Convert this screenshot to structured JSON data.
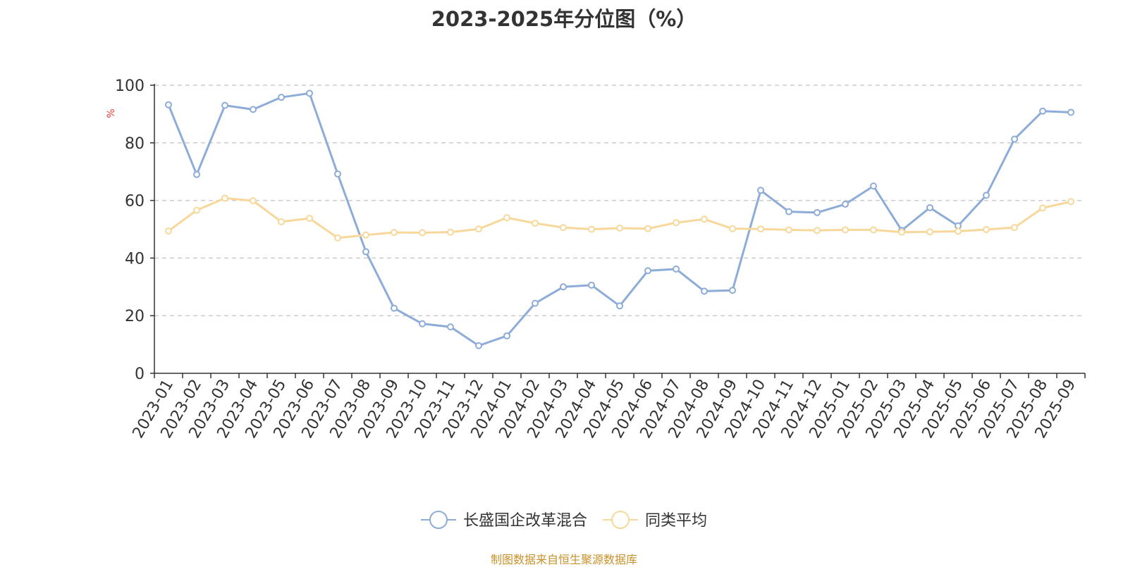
{
  "chart_data": {
    "type": "line",
    "title": "2023-2025年分位图（%）",
    "ylabel": "%",
    "xlabel": "",
    "ylim": [
      0,
      100
    ],
    "yticks": [
      0,
      20,
      40,
      60,
      80,
      100
    ],
    "grid": "horizontal dashed",
    "legend_position": "bottom-center",
    "categories": [
      "2023-01",
      "2023-02",
      "2023-03",
      "2023-04",
      "2023-05",
      "2023-06",
      "2023-07",
      "2023-08",
      "2023-09",
      "2023-10",
      "2023-11",
      "2023-12",
      "2024-01",
      "2024-02",
      "2024-03",
      "2024-04",
      "2024-05",
      "2024-06",
      "2024-07",
      "2024-08",
      "2024-09",
      "2024-10",
      "2024-11",
      "2024-12",
      "2025-01",
      "2025-02",
      "2025-03",
      "2025-04",
      "2025-05",
      "2025-06",
      "2025-07",
      "2025-08",
      "2025-09"
    ],
    "series": [
      {
        "name": "长盛国企改革混合",
        "color": "#8eacd8",
        "values": [
          93.2,
          69.0,
          93.0,
          91.6,
          95.8,
          97.2,
          69.2,
          42.2,
          22.6,
          17.2,
          16.1,
          9.6,
          13.0,
          24.3,
          30.0,
          30.6,
          23.4,
          35.6,
          36.2,
          28.5,
          28.8,
          63.5,
          56.1,
          55.8,
          58.7,
          65.0,
          49.6,
          57.5,
          51.2,
          61.8,
          81.3,
          91.0,
          90.6
        ]
      },
      {
        "name": "同类平均",
        "color": "#f8d89a",
        "values": [
          49.4,
          56.6,
          60.8,
          59.9,
          52.6,
          53.8,
          47.0,
          48.0,
          48.9,
          48.8,
          49.0,
          50.1,
          54.0,
          52.1,
          50.6,
          50.0,
          50.4,
          50.2,
          52.3,
          53.5,
          50.2,
          50.1,
          49.8,
          49.6,
          49.8,
          49.8,
          49.0,
          49.1,
          49.3,
          49.9,
          50.6,
          57.4,
          59.6
        ]
      }
    ]
  },
  "source_note": "制图数据来自恒生聚源数据库"
}
